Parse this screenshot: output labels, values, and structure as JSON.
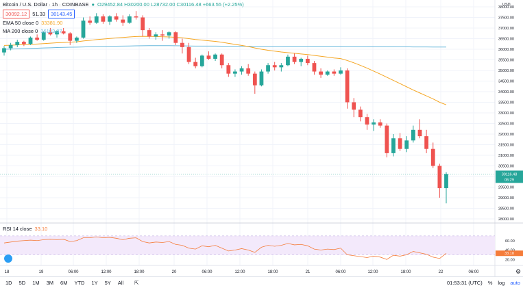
{
  "symbol": {
    "title": "Bitcoin / U.S. Dollar · 1h · COINBASE",
    "ohlc": "O29452.84 H30200.00 L28732.00 C30116.48 +663.55 (+2.25%)"
  },
  "price_boxes": {
    "bid": "30092.12",
    "spread": "51.33",
    "ask": "30143.45"
  },
  "indicators": {
    "ema": "EMA 50 close 0",
    "ema_value": "33381.90",
    "ma": "MA 200 close 0",
    "ma_value": "36103.37",
    "rsi": "RSI 14 close",
    "rsi_value": "33.10"
  },
  "price_axis": {
    "currency": "USD",
    "ticks": [
      "38000.00",
      "37500.00",
      "37000.00",
      "36500.00",
      "36000.00",
      "35500.00",
      "35000.00",
      "34500.00",
      "34000.00",
      "33500.00",
      "33000.00",
      "32500.00",
      "32000.00",
      "31500.00",
      "31000.00",
      "30500.00",
      "30000.00",
      "29500.00",
      "29000.00",
      "28500.00",
      "28000.00"
    ],
    "last_price": "30116.48",
    "countdown": "06:29"
  },
  "rsi_axis": {
    "ticks": [
      "60.00",
      "40.00",
      "20.00"
    ]
  },
  "time_axis": [
    "18",
    "19",
    "06:00",
    "12:00",
    "18:00",
    "20",
    "06:00",
    "12:00",
    "18:00",
    "21",
    "06:00",
    "12:00",
    "18:00",
    "22",
    "06:00"
  ],
  "bottom": {
    "ranges": [
      "1D",
      "5D",
      "1M",
      "3M",
      "6M",
      "YTD",
      "1Y",
      "5Y",
      "All"
    ],
    "clock": "01:53:31 (UTC)",
    "pct": "%",
    "log": "log",
    "auto": "auto"
  },
  "colors": {
    "up": "#26a69a",
    "down": "#ef5350",
    "ema": "#f5a623",
    "ma": "#67b7dc",
    "rsi": "#f57c3a"
  },
  "chart_data": {
    "type": "candlestick",
    "ylim": [
      28000,
      38000
    ],
    "candles": [
      [
        35850,
        36150,
        35700,
        36050
      ],
      [
        36050,
        36300,
        35950,
        36200
      ],
      [
        36200,
        36450,
        36100,
        36350
      ],
      [
        36350,
        36400,
        36150,
        36250
      ],
      [
        36250,
        36600,
        36200,
        36550
      ],
      [
        36550,
        36700,
        36400,
        36450
      ],
      [
        36450,
        36850,
        36400,
        36800
      ],
      [
        36800,
        37000,
        36650,
        36700
      ],
      [
        36700,
        36900,
        36550,
        36850
      ],
      [
        36850,
        37000,
        36700,
        36750
      ],
      [
        36750,
        36800,
        36200,
        36400
      ],
      [
        36400,
        36600,
        36300,
        36550
      ],
      [
        36550,
        37500,
        36500,
        37350
      ],
      [
        37350,
        37550,
        37150,
        37250
      ],
      [
        37250,
        37700,
        37200,
        37550
      ],
      [
        37550,
        37650,
        37200,
        37300
      ],
      [
        37300,
        37600,
        37150,
        37550
      ],
      [
        37550,
        37700,
        37300,
        37400
      ],
      [
        37400,
        37600,
        37100,
        37250
      ],
      [
        37250,
        37650,
        37200,
        37550
      ],
      [
        37550,
        37800,
        37400,
        37500
      ],
      [
        37500,
        37600,
        36600,
        36900
      ],
      [
        36900,
        37000,
        36500,
        36600
      ],
      [
        36600,
        36800,
        36450,
        36700
      ],
      [
        36700,
        36900,
        36400,
        36650
      ],
      [
        36650,
        36850,
        36500,
        36800
      ],
      [
        36800,
        36850,
        36200,
        36300
      ],
      [
        36300,
        36500,
        35800,
        36100
      ],
      [
        36100,
        36300,
        35300,
        35400
      ],
      [
        35400,
        35600,
        35100,
        35200
      ],
      [
        35200,
        35750,
        35150,
        35700
      ],
      [
        35700,
        35900,
        35500,
        35550
      ],
      [
        35550,
        35800,
        35450,
        35750
      ],
      [
        35750,
        35800,
        35100,
        35250
      ],
      [
        35250,
        35350,
        34700,
        34850
      ],
      [
        34850,
        35050,
        34700,
        34950
      ],
      [
        34950,
        35200,
        34800,
        35100
      ],
      [
        35100,
        35300,
        34750,
        34850
      ],
      [
        34850,
        34950,
        33900,
        34300
      ],
      [
        34300,
        35050,
        34250,
        34950
      ],
      [
        34950,
        35350,
        34850,
        35250
      ],
      [
        35250,
        35400,
        35000,
        35150
      ],
      [
        35150,
        35350,
        34950,
        35250
      ],
      [
        35250,
        35750,
        35200,
        35650
      ],
      [
        35650,
        35800,
        35300,
        35400
      ],
      [
        35400,
        35600,
        35200,
        35550
      ],
      [
        35550,
        35700,
        35250,
        35350
      ],
      [
        35350,
        35450,
        34800,
        34950
      ],
      [
        34950,
        35100,
        34650,
        34800
      ],
      [
        34800,
        35000,
        34750,
        34950
      ],
      [
        34950,
        35050,
        34750,
        34850
      ],
      [
        34850,
        35150,
        34800,
        35000
      ],
      [
        35000,
        35100,
        33200,
        33500
      ],
      [
        33500,
        33700,
        32800,
        33150
      ],
      [
        33150,
        33300,
        32600,
        32800
      ],
      [
        32800,
        32950,
        32200,
        32450
      ],
      [
        32450,
        32700,
        32150,
        32550
      ],
      [
        32550,
        32700,
        32300,
        32400
      ],
      [
        32400,
        32500,
        30900,
        31100
      ],
      [
        31100,
        32000,
        30950,
        31800
      ],
      [
        31800,
        32050,
        31200,
        31300
      ],
      [
        31300,
        31900,
        31150,
        31700
      ],
      [
        31700,
        32400,
        31600,
        32200
      ],
      [
        32200,
        32700,
        31800,
        31900
      ],
      [
        31900,
        32200,
        31100,
        31300
      ],
      [
        31300,
        31600,
        30400,
        30500
      ],
      [
        30500,
        30600,
        29000,
        29450
      ],
      [
        29450,
        30200,
        28732,
        30116
      ]
    ],
    "ema": [
      36180,
      36190,
      36205,
      36215,
      36230,
      36245,
      36265,
      36285,
      36305,
      36320,
      36335,
      36350,
      36390,
      36420,
      36455,
      36480,
      36510,
      36535,
      36555,
      36580,
      36600,
      36610,
      36605,
      36600,
      36590,
      36580,
      36560,
      36540,
      36500,
      36460,
      36430,
      36400,
      36370,
      36330,
      36280,
      36230,
      36180,
      36130,
      36060,
      36000,
      35950,
      35910,
      35870,
      35840,
      35810,
      35780,
      35750,
      35710,
      35670,
      35630,
      35590,
      35560,
      35470,
      35360,
      35240,
      35110,
      34970,
      34830,
      34680,
      34530,
      34380,
      34230,
      34080,
      33940,
      33800,
      33660,
      33500,
      33381
    ],
    "ma": [
      36000,
      36010,
      36020,
      36030,
      36040,
      36050,
      36060,
      36070,
      36080,
      36090,
      36095,
      36100,
      36110,
      36120,
      36130,
      36135,
      36140,
      36145,
      36150,
      36155,
      36160,
      36165,
      36170,
      36170,
      36170,
      36170,
      36165,
      36160,
      36155,
      36150,
      36150,
      36150,
      36150,
      36145,
      36140,
      36140,
      36140,
      36140,
      36135,
      36135,
      36135,
      36135,
      36135,
      36140,
      36140,
      36140,
      36140,
      36140,
      36140,
      36140,
      36140,
      36140,
      36135,
      36135,
      36130,
      36130,
      36125,
      36125,
      36120,
      36120,
      36115,
      36115,
      36110,
      36110,
      36108,
      36106,
      36104,
      36103
    ],
    "rsi": [
      55,
      57,
      59,
      60,
      61,
      60,
      62,
      63,
      62,
      63,
      58,
      60,
      66,
      66,
      68,
      66,
      67,
      65,
      62,
      65,
      66,
      58,
      55,
      57,
      56,
      58,
      52,
      50,
      44,
      42,
      49,
      47,
      50,
      44,
      38,
      40,
      43,
      40,
      35,
      46,
      50,
      48,
      50,
      54,
      51,
      52,
      49,
      42,
      40,
      42,
      41,
      44,
      30,
      28,
      26,
      24,
      27,
      25,
      20,
      29,
      27,
      30,
      37,
      34,
      31,
      25,
      22,
      33
    ],
    "rsi_range": [
      0,
      80
    ],
    "rsi_band": [
      30,
      70
    ]
  }
}
